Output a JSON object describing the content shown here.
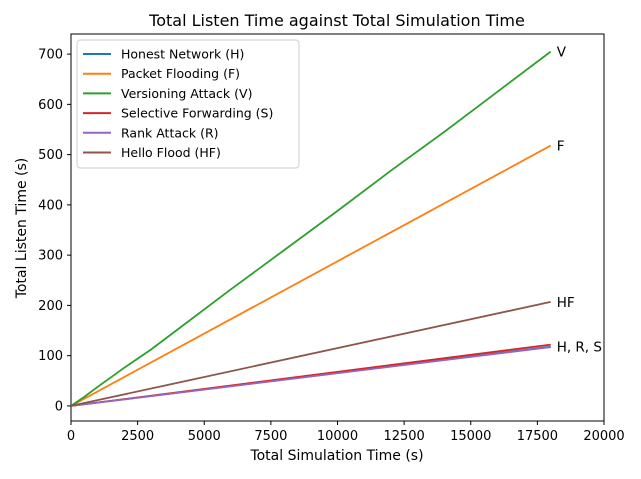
{
  "chart_data": {
    "type": "line",
    "title": "Total Listen Time against Total Simulation Time",
    "xlabel": "Total Simulation Time (s)",
    "ylabel": "Total Listen Time (s)",
    "xlim": [
      0,
      20000
    ],
    "ylim": [
      -30,
      740
    ],
    "xticks": [
      0,
      2500,
      5000,
      7500,
      10000,
      12500,
      15000,
      17500,
      20000
    ],
    "yticks": [
      0,
      100,
      200,
      300,
      400,
      500,
      600,
      700
    ],
    "grid": false,
    "legend_position": "top-left",
    "series": [
      {
        "name": "Honest Network (H)",
        "color": "#1f77b4",
        "x": [
          0,
          18000
        ],
        "y": [
          0,
          118
        ]
      },
      {
        "name": "Packet Flooding (F)",
        "color": "#ff7f0e",
        "x": [
          0,
          18000
        ],
        "y": [
          0,
          518
        ]
      },
      {
        "name": "Versioning Attack (V)",
        "color": "#2ca02c",
        "x": [
          0,
          500,
          1000,
          1500,
          2000,
          3000,
          4000,
          6000,
          8000,
          10000,
          12000,
          14000,
          16000,
          18000
        ],
        "y": [
          0,
          18,
          38,
          57,
          76,
          112,
          152,
          232,
          310,
          388,
          468,
          545,
          625,
          705
        ]
      },
      {
        "name": "Selective Forwarding (S)",
        "color": "#d62728",
        "x": [
          0,
          18000
        ],
        "y": [
          0,
          122
        ]
      },
      {
        "name": "Rank Attack (R)",
        "color": "#9467bd",
        "x": [
          0,
          18000
        ],
        "y": [
          0,
          117
        ]
      },
      {
        "name": "Hello Flood (HF)",
        "color": "#8c564b",
        "x": [
          0,
          18000
        ],
        "y": [
          0,
          207
        ]
      }
    ],
    "annotations": [
      {
        "text": "V",
        "x": 18000,
        "y": 705
      },
      {
        "text": "F",
        "x": 18000,
        "y": 518
      },
      {
        "text": "HF",
        "x": 18000,
        "y": 207
      },
      {
        "text": "H, R, S",
        "x": 18000,
        "y": 118
      }
    ]
  }
}
